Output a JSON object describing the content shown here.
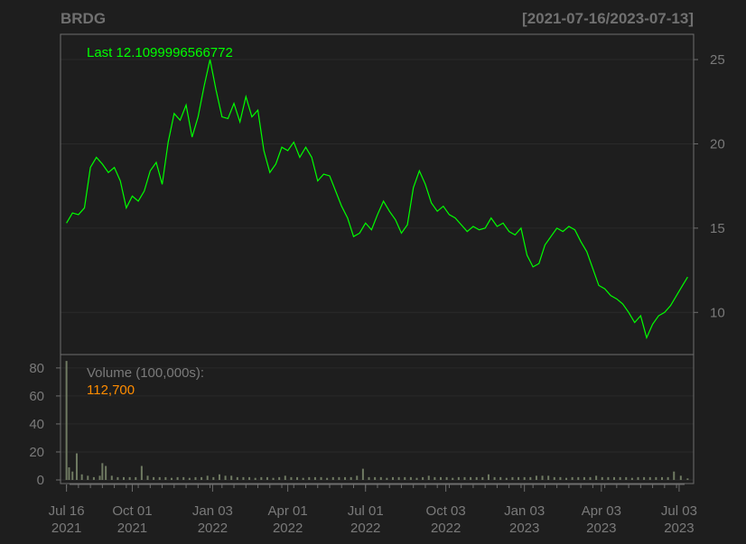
{
  "header": {
    "symbol": "BRDG",
    "date_range": "[2021-07-16/2023-07-13]"
  },
  "colors": {
    "background": "#1e1e1e",
    "price_line": "#00ff00",
    "volume_bars": "#6f7a62",
    "volume_value": "#ff8c00",
    "axis_text": "#7a7a7a",
    "grid": "#2a2a2a",
    "frame": "#6e6e6e"
  },
  "chart_data": [
    {
      "type": "line",
      "name": "price",
      "last_label": "Last 12.1099996566772",
      "ylim": [
        7.5,
        26.5
      ],
      "y_ticks": [
        10,
        15,
        20,
        25
      ],
      "dates": [
        "2021-07-16",
        "2021-07-23",
        "2021-07-30",
        "2021-08-06",
        "2021-08-13",
        "2021-08-20",
        "2021-08-27",
        "2021-09-03",
        "2021-09-10",
        "2021-09-17",
        "2021-09-24",
        "2021-10-01",
        "2021-10-08",
        "2021-10-15",
        "2021-10-22",
        "2021-10-29",
        "2021-11-05",
        "2021-11-12",
        "2021-11-19",
        "2021-11-26",
        "2021-12-03",
        "2021-12-10",
        "2021-12-17",
        "2021-12-24",
        "2021-12-31",
        "2022-01-07",
        "2022-01-14",
        "2022-01-21",
        "2022-01-28",
        "2022-02-04",
        "2022-02-11",
        "2022-02-18",
        "2022-02-25",
        "2022-03-04",
        "2022-03-11",
        "2022-03-18",
        "2022-03-25",
        "2022-04-01",
        "2022-04-08",
        "2022-04-15",
        "2022-04-22",
        "2022-04-29",
        "2022-05-06",
        "2022-05-13",
        "2022-05-20",
        "2022-05-27",
        "2022-06-03",
        "2022-06-10",
        "2022-06-17",
        "2022-06-24",
        "2022-07-01",
        "2022-07-08",
        "2022-07-15",
        "2022-07-22",
        "2022-07-29",
        "2022-08-05",
        "2022-08-12",
        "2022-08-19",
        "2022-08-26",
        "2022-09-02",
        "2022-09-09",
        "2022-09-16",
        "2022-09-23",
        "2022-09-30",
        "2022-10-07",
        "2022-10-14",
        "2022-10-21",
        "2022-10-28",
        "2022-11-04",
        "2022-11-11",
        "2022-11-18",
        "2022-11-25",
        "2022-12-02",
        "2022-12-09",
        "2022-12-16",
        "2022-12-23",
        "2022-12-30",
        "2023-01-06",
        "2023-01-13",
        "2023-01-20",
        "2023-01-27",
        "2023-02-03",
        "2023-02-10",
        "2023-02-17",
        "2023-02-24",
        "2023-03-03",
        "2023-03-10",
        "2023-03-17",
        "2023-03-24",
        "2023-03-31",
        "2023-04-07",
        "2023-04-14",
        "2023-04-21",
        "2023-04-28",
        "2023-05-05",
        "2023-05-12",
        "2023-05-19",
        "2023-05-26",
        "2023-06-02",
        "2023-06-09",
        "2023-06-16",
        "2023-06-23",
        "2023-06-30",
        "2023-07-07",
        "2023-07-13"
      ],
      "values": [
        15.3,
        15.9,
        15.8,
        16.2,
        18.6,
        19.2,
        18.8,
        18.3,
        18.6,
        17.8,
        16.2,
        16.9,
        16.6,
        17.2,
        18.4,
        18.9,
        17.6,
        20.1,
        21.8,
        21.4,
        22.3,
        20.4,
        21.6,
        23.4,
        25.0,
        23.2,
        21.6,
        21.5,
        22.4,
        21.3,
        22.8,
        21.6,
        22.0,
        19.6,
        18.3,
        18.8,
        19.8,
        19.6,
        20.1,
        19.2,
        19.8,
        19.2,
        17.8,
        18.2,
        18.1,
        17.2,
        16.3,
        15.6,
        14.5,
        14.7,
        15.3,
        14.9,
        15.8,
        16.6,
        16.0,
        15.5,
        14.7,
        15.2,
        17.4,
        18.4,
        17.6,
        16.5,
        16.0,
        16.3,
        15.8,
        15.6,
        15.2,
        14.8,
        15.1,
        14.9,
        15.0,
        15.6,
        15.1,
        15.3,
        14.8,
        14.6,
        15.0,
        13.4,
        12.7,
        12.9,
        14.0,
        14.5,
        15.0,
        14.8,
        15.1,
        14.9,
        14.2,
        13.6,
        12.6,
        11.6,
        11.4,
        11.0,
        10.8,
        10.5,
        10.0,
        9.4,
        9.8,
        8.5,
        9.3,
        9.8,
        10.0,
        10.4,
        11.0,
        11.6,
        12.1
      ]
    },
    {
      "type": "bar",
      "name": "volume",
      "label": "Volume (100,000s):",
      "last_value_label": "112,700",
      "ylim": [
        0,
        87
      ],
      "y_ticks": [
        0,
        20,
        40,
        60,
        80
      ],
      "x_ticks": [
        {
          "date": "2021-07-16",
          "line1": "Jul 16",
          "line2": "2021"
        },
        {
          "date": "2021-10-01",
          "line1": "Oct 01",
          "line2": "2021"
        },
        {
          "date": "2022-01-03",
          "line1": "Jan 03",
          "line2": "2022"
        },
        {
          "date": "2022-04-01",
          "line1": "Apr 01",
          "line2": "2022"
        },
        {
          "date": "2022-07-01",
          "line1": "Jul 01",
          "line2": "2022"
        },
        {
          "date": "2022-10-03",
          "line1": "Oct 03",
          "line2": "2022"
        },
        {
          "date": "2023-01-03",
          "line1": "Jan 03",
          "line2": "2023"
        },
        {
          "date": "2023-04-03",
          "line1": "Apr 03",
          "line2": "2023"
        },
        {
          "date": "2023-07-03",
          "line1": "Jul 03",
          "line2": "2023"
        }
      ],
      "dates": [
        "2021-07-16",
        "2021-07-19",
        "2021-07-23",
        "2021-07-28",
        "2021-08-03",
        "2021-08-10",
        "2021-08-17",
        "2021-08-24",
        "2021-08-27",
        "2021-08-31",
        "2021-09-07",
        "2021-09-14",
        "2021-09-21",
        "2021-09-28",
        "2021-10-05",
        "2021-10-12",
        "2021-10-19",
        "2021-10-26",
        "2021-11-02",
        "2021-11-09",
        "2021-11-16",
        "2021-11-23",
        "2021-11-30",
        "2021-12-07",
        "2021-12-14",
        "2021-12-21",
        "2021-12-28",
        "2022-01-04",
        "2022-01-11",
        "2022-01-18",
        "2022-01-25",
        "2022-02-01",
        "2022-02-08",
        "2022-02-15",
        "2022-02-22",
        "2022-03-01",
        "2022-03-08",
        "2022-03-15",
        "2022-03-22",
        "2022-03-29",
        "2022-04-05",
        "2022-04-12",
        "2022-04-19",
        "2022-04-26",
        "2022-05-03",
        "2022-05-10",
        "2022-05-17",
        "2022-05-24",
        "2022-05-31",
        "2022-06-07",
        "2022-06-14",
        "2022-06-21",
        "2022-06-28",
        "2022-07-05",
        "2022-07-12",
        "2022-07-19",
        "2022-07-26",
        "2022-08-02",
        "2022-08-09",
        "2022-08-16",
        "2022-08-23",
        "2022-08-30",
        "2022-09-06",
        "2022-09-13",
        "2022-09-20",
        "2022-09-27",
        "2022-10-04",
        "2022-10-11",
        "2022-10-18",
        "2022-10-25",
        "2022-11-01",
        "2022-11-08",
        "2022-11-15",
        "2022-11-22",
        "2022-11-29",
        "2022-12-06",
        "2022-12-13",
        "2022-12-20",
        "2022-12-27",
        "2023-01-03",
        "2023-01-10",
        "2023-01-17",
        "2023-01-24",
        "2023-01-31",
        "2023-02-07",
        "2023-02-14",
        "2023-02-21",
        "2023-02-28",
        "2023-03-07",
        "2023-03-14",
        "2023-03-21",
        "2023-03-28",
        "2023-04-04",
        "2023-04-11",
        "2023-04-18",
        "2023-04-25",
        "2023-05-02",
        "2023-05-09",
        "2023-05-16",
        "2023-05-23",
        "2023-05-30",
        "2023-06-06",
        "2023-06-13",
        "2023-06-20",
        "2023-06-27",
        "2023-07-05",
        "2023-07-13"
      ],
      "values": [
        85,
        9,
        6,
        19,
        4,
        3,
        2,
        3,
        12,
        10,
        3,
        2,
        2,
        2,
        2,
        10,
        3,
        2,
        2,
        2,
        1.5,
        2,
        2,
        1.5,
        2,
        2,
        3,
        2,
        4,
        3,
        3,
        2,
        2,
        2,
        1.5,
        2,
        2,
        1.5,
        2,
        3,
        2,
        2,
        1.5,
        2,
        2,
        2,
        1.5,
        2,
        2,
        2,
        2,
        3,
        8,
        2,
        2,
        2,
        1.5,
        2,
        2,
        2,
        2,
        1.5,
        2,
        3,
        2,
        2,
        2,
        1.5,
        2,
        2,
        2,
        2,
        2,
        4,
        2,
        2,
        1.5,
        2,
        2,
        2,
        2,
        3,
        3,
        3,
        2,
        2,
        1.5,
        2,
        2,
        2,
        2,
        3,
        2,
        2,
        2,
        2,
        2,
        1.5,
        2,
        2,
        2,
        2,
        2,
        2,
        6,
        3,
        1.1
      ]
    }
  ]
}
